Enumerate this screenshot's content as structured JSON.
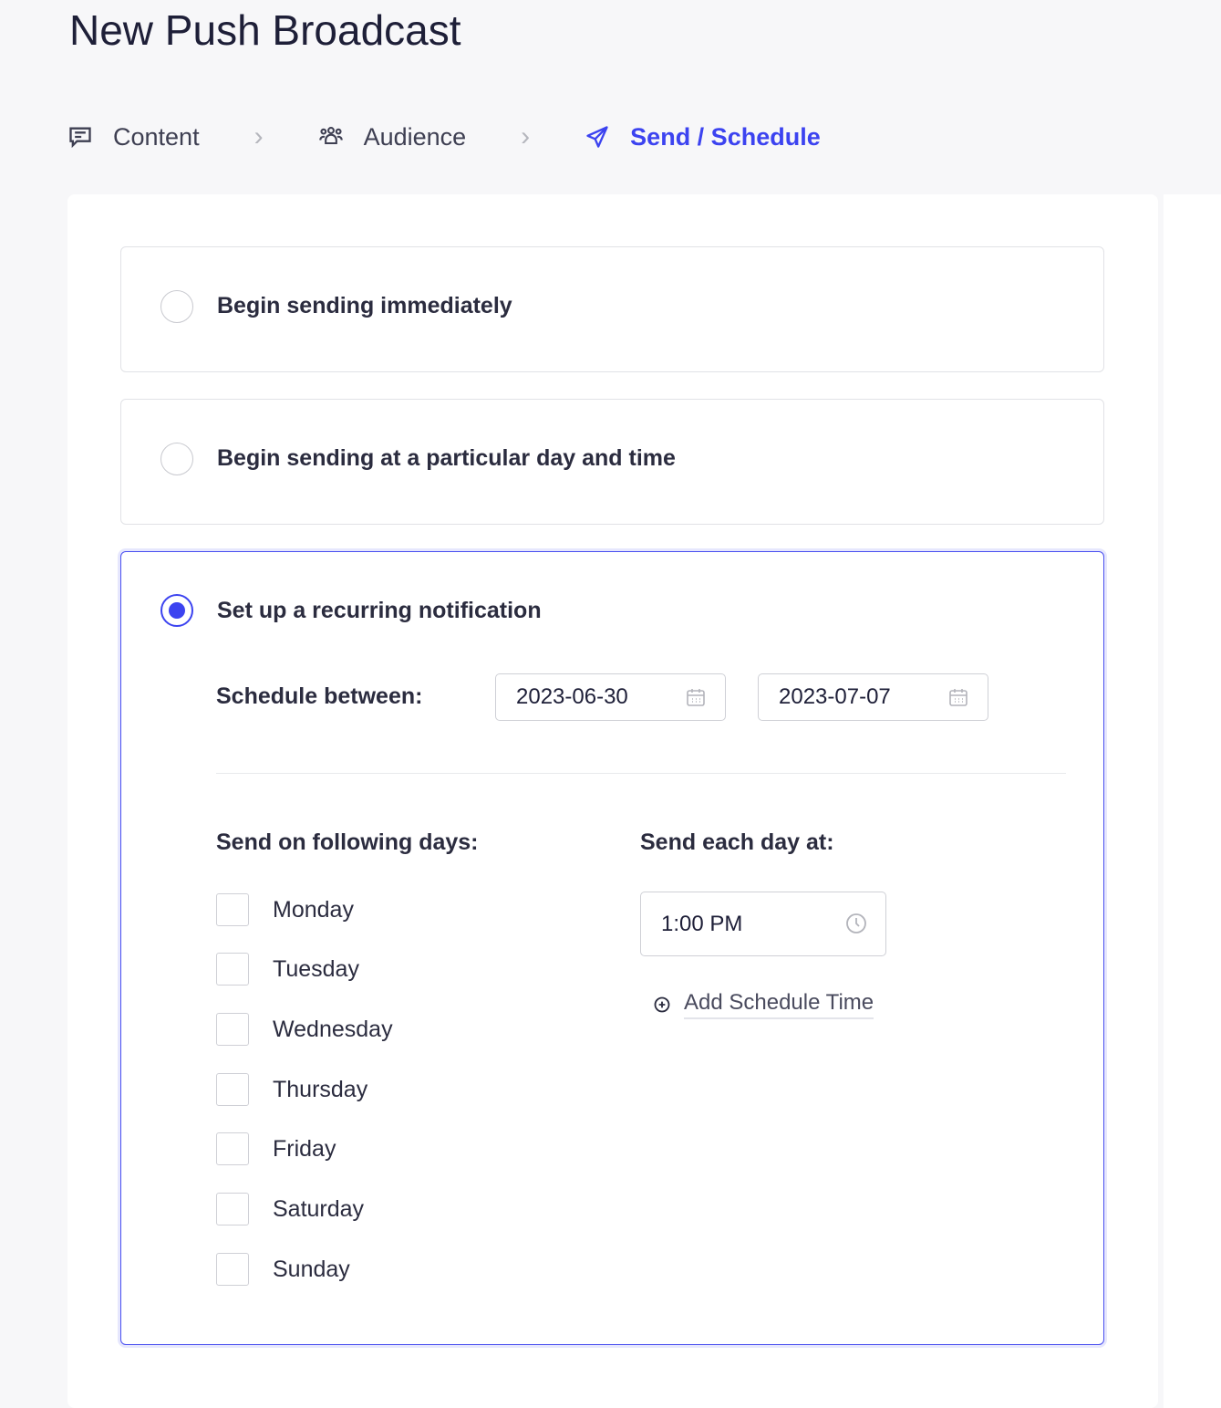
{
  "page": {
    "title": "New Push Broadcast"
  },
  "steps": [
    {
      "label": "Content",
      "icon": "message-square-icon"
    },
    {
      "label": "Audience",
      "icon": "users-icon"
    },
    {
      "label": "Send / Schedule",
      "icon": "send-icon",
      "active": true
    }
  ],
  "options": [
    {
      "label": "Begin sending immediately",
      "selected": false
    },
    {
      "label": "Begin sending at a particular day and time",
      "selected": false
    },
    {
      "label": "Set up a recurring notification",
      "selected": true
    }
  ],
  "recurring": {
    "schedule_between_label": "Schedule between:",
    "start_date": "2023-06-30",
    "end_date": "2023-07-07",
    "days_label": "Send on following days:",
    "days": [
      {
        "label": "Monday",
        "checked": false
      },
      {
        "label": "Tuesday",
        "checked": false
      },
      {
        "label": "Wednesday",
        "checked": false
      },
      {
        "label": "Thursday",
        "checked": false
      },
      {
        "label": "Friday",
        "checked": false
      },
      {
        "label": "Saturday",
        "checked": false
      },
      {
        "label": "Sunday",
        "checked": false
      }
    ],
    "time_label": "Send each day at:",
    "time": "1:00 PM",
    "add_time_label": "Add Schedule Time"
  },
  "colors": {
    "accent": "#3c43f0"
  }
}
